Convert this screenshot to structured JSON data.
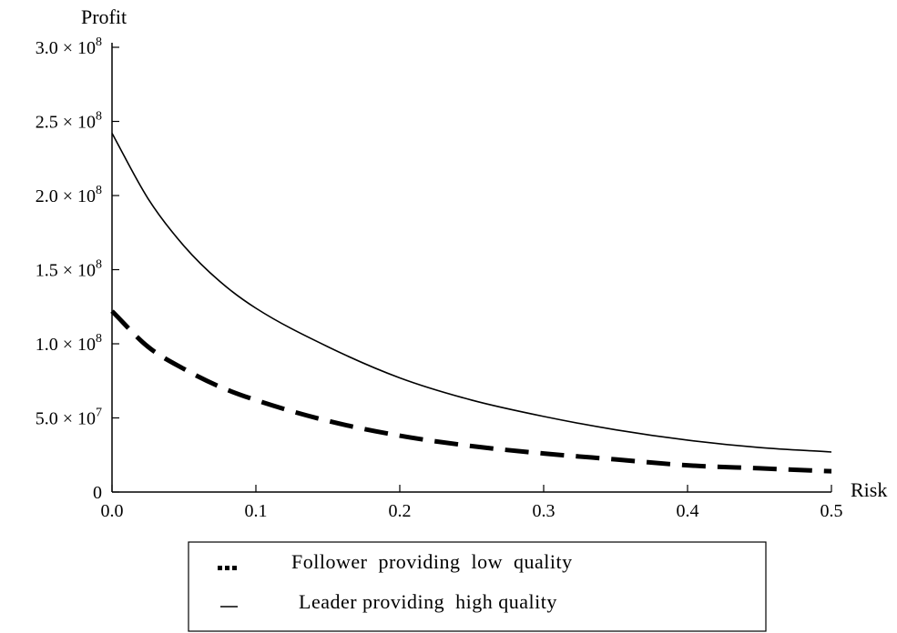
{
  "chart_data": {
    "type": "line",
    "title": "",
    "xlabel": "Risk",
    "ylabel": "Profit",
    "xlim": [
      0,
      0.5
    ],
    "ylim": [
      0,
      300000000
    ],
    "grid": false,
    "legend_placement": "bottom-center",
    "x_ticks": [
      {
        "value": 0.0,
        "label": "0.0"
      },
      {
        "value": 0.1,
        "label": "0.1"
      },
      {
        "value": 0.2,
        "label": "0.2"
      },
      {
        "value": 0.3,
        "label": "0.3"
      },
      {
        "value": 0.4,
        "label": "0.4"
      },
      {
        "value": 0.5,
        "label": "0.5"
      }
    ],
    "y_ticks": [
      {
        "value": 0,
        "mantissa": "0",
        "exponent": ""
      },
      {
        "value": 50000000,
        "mantissa": "5.0 × 10",
        "exponent": "7"
      },
      {
        "value": 100000000,
        "mantissa": "1.0 × 10",
        "exponent": "8"
      },
      {
        "value": 150000000,
        "mantissa": "1.5 × 10",
        "exponent": "8"
      },
      {
        "value": 200000000,
        "mantissa": "2.0 × 10",
        "exponent": "8"
      },
      {
        "value": 250000000,
        "mantissa": "2.5 × 10",
        "exponent": "8"
      },
      {
        "value": 300000000,
        "mantissa": "3.0 × 10",
        "exponent": "8"
      }
    ],
    "x": [
      0.0,
      0.025,
      0.05,
      0.075,
      0.1,
      0.15,
      0.2,
      0.25,
      0.3,
      0.35,
      0.4,
      0.45,
      0.5
    ],
    "series": [
      {
        "name": "Leader providing  high quality",
        "style": "solid",
        "color": "#000000",
        "values": [
          242000000,
          198000000,
          166000000,
          142000000,
          124000000,
          98000000,
          77000000,
          62000000,
          51000000,
          42000000,
          35000000,
          30000000,
          27000000
        ]
      },
      {
        "name": "Follower  providing  low  quality",
        "style": "dashed",
        "color": "#000000",
        "values": [
          122000000,
          98000000,
          83000000,
          71000000,
          62000000,
          48000000,
          38000000,
          31000000,
          26000000,
          22000000,
          18000000,
          16000000,
          14000000
        ]
      }
    ]
  }
}
